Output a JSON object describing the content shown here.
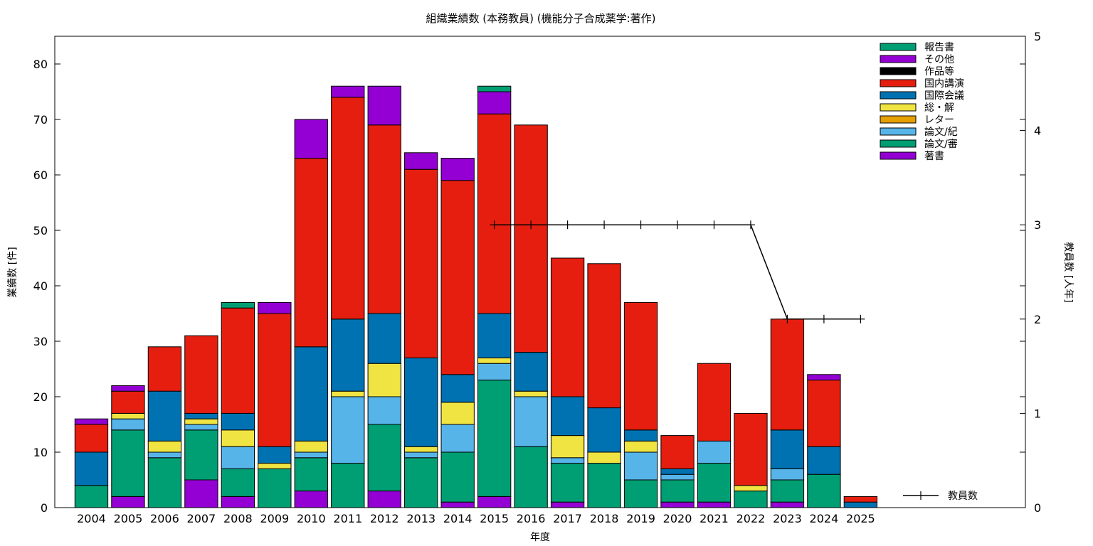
{
  "chart_data": {
    "type": "bar",
    "title": "組織業績数 (本務教員) (機能分子合成薬学:著作)",
    "xlabel": "年度",
    "ylabel": "業績数 [件]",
    "y2label": "教員数 [人年]",
    "ylim": [
      0,
      85
    ],
    "y2lim": [
      0,
      5
    ],
    "yticks": [
      0,
      10,
      20,
      30,
      40,
      50,
      60,
      70,
      80
    ],
    "y2ticks": [
      0,
      1,
      2,
      3,
      4,
      5
    ],
    "stacked": true,
    "categories": [
      "2004",
      "2005",
      "2006",
      "2007",
      "2008",
      "2009",
      "2010",
      "2011",
      "2012",
      "2013",
      "2014",
      "2015",
      "2016",
      "2017",
      "2018",
      "2019",
      "2020",
      "2021",
      "2022",
      "2023",
      "2024",
      "2025"
    ],
    "series": [
      {
        "name": "著書",
        "color": "#9400d3",
        "values": [
          0,
          2,
          0,
          5,
          2,
          0,
          3,
          0,
          3,
          0,
          1,
          2,
          0,
          1,
          0,
          0,
          1,
          1,
          0,
          1,
          0,
          0
        ]
      },
      {
        "name": "論文/審",
        "color": "#009e73",
        "values": [
          4,
          12,
          9,
          9,
          5,
          7,
          6,
          8,
          12,
          9,
          9,
          21,
          11,
          7,
          8,
          5,
          4,
          7,
          3,
          4,
          6,
          0
        ]
      },
      {
        "name": "論文/紀",
        "color": "#56b4e9",
        "values": [
          0,
          2,
          1,
          1,
          4,
          0,
          1,
          12,
          5,
          1,
          5,
          3,
          9,
          1,
          0,
          5,
          1,
          4,
          0,
          2,
          0,
          0
        ]
      },
      {
        "name": "レター",
        "color": "#e69f00",
        "values": [
          0,
          0,
          0,
          0,
          0,
          0,
          0,
          0,
          0,
          0,
          0,
          0,
          0,
          0,
          0,
          0,
          0,
          0,
          0,
          0,
          0,
          0
        ]
      },
      {
        "name": "総・解",
        "color": "#f0e442",
        "values": [
          0,
          1,
          2,
          1,
          3,
          1,
          2,
          1,
          6,
          1,
          4,
          1,
          1,
          4,
          2,
          2,
          0,
          0,
          1,
          0,
          0,
          0
        ]
      },
      {
        "name": "国際会議",
        "color": "#0072b2",
        "values": [
          6,
          0,
          9,
          1,
          3,
          3,
          17,
          13,
          9,
          16,
          5,
          8,
          7,
          7,
          8,
          2,
          1,
          0,
          0,
          7,
          5,
          1
        ]
      },
      {
        "name": "国内講演",
        "color": "#e51e10",
        "values": [
          5,
          4,
          8,
          14,
          19,
          24,
          34,
          40,
          34,
          34,
          35,
          36,
          41,
          25,
          26,
          23,
          6,
          14,
          13,
          20,
          12,
          1
        ]
      },
      {
        "name": "作品等",
        "color": "#000000",
        "values": [
          0,
          0,
          0,
          0,
          0,
          0,
          0,
          0,
          0,
          0,
          0,
          0,
          0,
          0,
          0,
          0,
          0,
          0,
          0,
          0,
          0,
          0
        ]
      },
      {
        "name": "その他",
        "color": "#9400d3",
        "values": [
          1,
          1,
          0,
          0,
          0,
          2,
          7,
          2,
          7,
          3,
          4,
          4,
          0,
          0,
          0,
          0,
          0,
          0,
          0,
          0,
          1,
          0
        ]
      },
      {
        "name": "報告書",
        "color": "#009e73",
        "values": [
          0,
          0,
          0,
          0,
          1,
          0,
          0,
          0,
          0,
          0,
          0,
          1,
          0,
          0,
          0,
          0,
          0,
          0,
          0,
          0,
          0,
          0
        ]
      }
    ],
    "legend_order": [
      "報告書",
      "その他",
      "作品等",
      "国内講演",
      "国際会議",
      "総・解",
      "レター",
      "論文/紀",
      "論文/審",
      "著書"
    ],
    "legend_position": "top-right",
    "line_series": {
      "name": "教員数",
      "axis": "y2",
      "color": "#000000",
      "x": [
        "2015",
        "2016",
        "2017",
        "2018",
        "2019",
        "2020",
        "2021",
        "2022",
        "2023",
        "2024",
        "2025"
      ],
      "values": [
        3,
        3,
        3,
        3,
        3,
        3,
        3,
        3,
        2,
        2,
        2
      ]
    },
    "grid": false
  }
}
